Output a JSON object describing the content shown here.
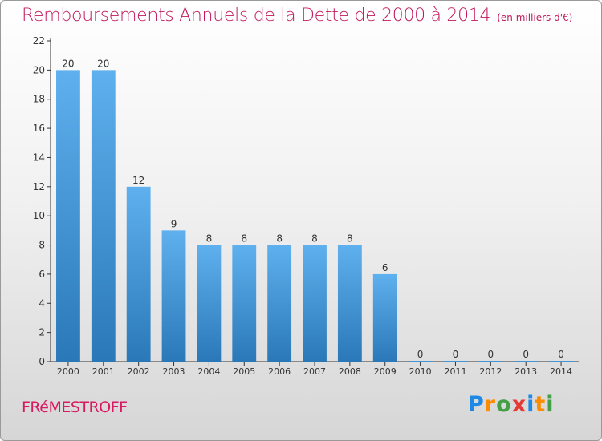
{
  "header": {
    "title": "Remboursements Annuels de la Dette de 2000 à 2014",
    "subtitle": "(en milliers d'€)"
  },
  "footer": {
    "commune": "FRéMESTROFF",
    "logo": {
      "letters": [
        "P",
        "r",
        "o",
        "x",
        "i",
        "t",
        "i"
      ],
      "colors": [
        "#1e88e5",
        "#fb8c00",
        "#43a047",
        "#e53935",
        "#1e88e5",
        "#fb8c00",
        "#43a047"
      ]
    }
  },
  "chart_data": {
    "type": "bar",
    "title": "Remboursements Annuels de la Dette de 2000 à 2014",
    "subtitle": "(en milliers d'€)",
    "categories": [
      "2000",
      "2001",
      "2002",
      "2003",
      "2004",
      "2005",
      "2006",
      "2007",
      "2008",
      "2009",
      "2010",
      "2011",
      "2012",
      "2013",
      "2014"
    ],
    "values": [
      20,
      20,
      12,
      9,
      8,
      8,
      8,
      8,
      8,
      6,
      0,
      0,
      0,
      0,
      0
    ],
    "data_labels": [
      "20",
      "20",
      "12",
      "9",
      "8",
      "8",
      "8",
      "8",
      "8",
      "6",
      "0",
      "0",
      "0",
      "0",
      "0"
    ],
    "ylim": [
      0,
      22
    ],
    "yticks": [
      0,
      2,
      4,
      6,
      8,
      10,
      12,
      14,
      16,
      18,
      20,
      22
    ],
    "grid": false,
    "colors": {
      "bar_top": "#5fb0ee",
      "bar_bottom": "#2a78b8",
      "title": "#c2185b"
    }
  }
}
